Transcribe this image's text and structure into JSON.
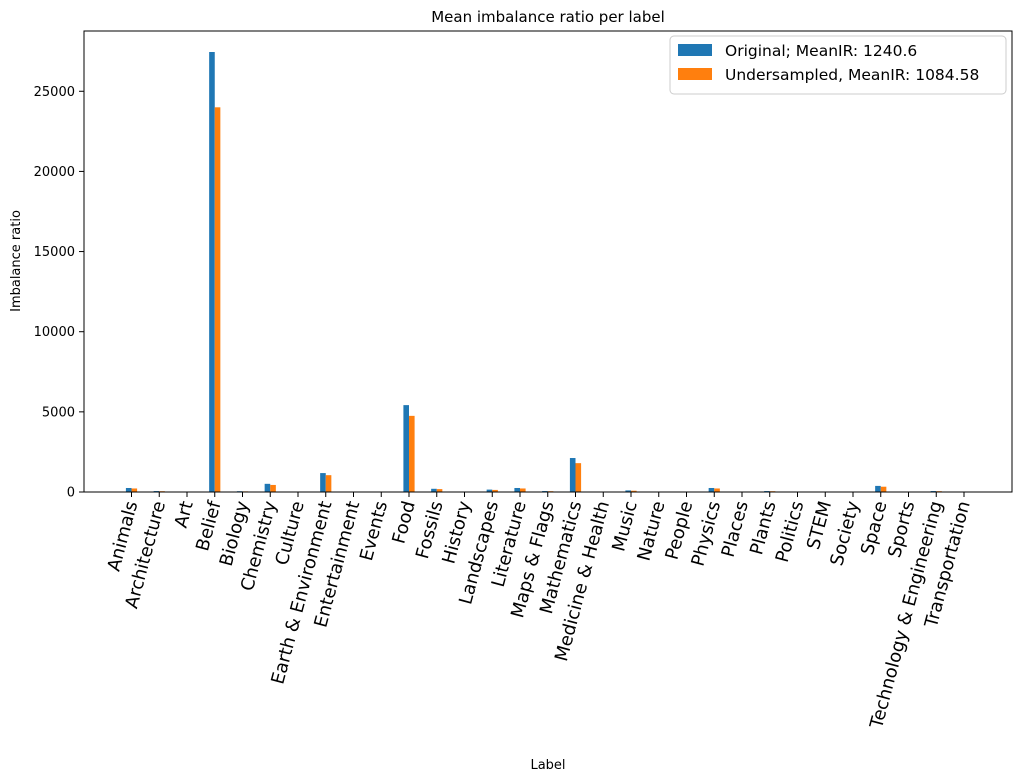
{
  "chart_data": {
    "type": "bar",
    "title": "Mean imbalance ratio per label",
    "xlabel": "Label",
    "ylabel": "Imbalance ratio",
    "ylim": [
      0,
      28760
    ],
    "yticks": [
      0,
      5000,
      10000,
      15000,
      20000,
      25000
    ],
    "grid": false,
    "legend_position": "top-right",
    "categories": [
      "Animals",
      "Architecture",
      "Art",
      "Belief",
      "Biology",
      "Chemistry",
      "Culture",
      "Earth & Environment",
      "Entertainment",
      "Events",
      "Food",
      "Fossils",
      "History",
      "Landscapes",
      "Literature",
      "Maps & Flags",
      "Mathematics",
      "Medicine & Health",
      "Music",
      "Nature",
      "People",
      "Physics",
      "Places",
      "Plants",
      "Politics",
      "STEM",
      "Society",
      "Space",
      "Sports",
      "Technology & Engineering",
      "Transportation"
    ],
    "series": [
      {
        "name": "Original; MeanIR: 1240.6",
        "color": "#1f77b4",
        "values": [
          250,
          60,
          10,
          27450,
          50,
          510,
          5,
          1180,
          10,
          10,
          5420,
          200,
          10,
          150,
          250,
          60,
          2120,
          10,
          100,
          10,
          10,
          250,
          10,
          60,
          10,
          10,
          10,
          380,
          10,
          60,
          10
        ]
      },
      {
        "name": "Undersampled, MeanIR: 1084.58",
        "color": "#ff7f0e",
        "values": [
          220,
          50,
          10,
          24000,
          40,
          440,
          5,
          1050,
          10,
          10,
          4750,
          180,
          10,
          130,
          220,
          50,
          1800,
          10,
          80,
          10,
          10,
          220,
          10,
          50,
          10,
          10,
          10,
          330,
          10,
          50,
          10
        ]
      }
    ]
  }
}
